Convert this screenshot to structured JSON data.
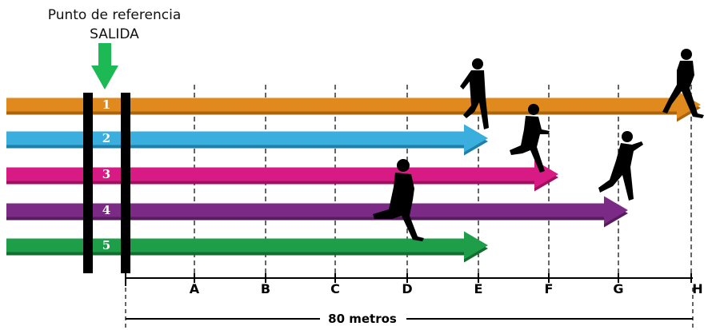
{
  "reference": {
    "line1": "Punto de referencia",
    "line2": "SALIDA",
    "arrow_color": "#1db954"
  },
  "lanes": [
    {
      "number": "1",
      "color": "#e08a1e",
      "shadow": "#a8640f",
      "ends_at": "H"
    },
    {
      "number": "2",
      "color": "#3aaedc",
      "shadow": "#1f7fa8",
      "ends_at": "E"
    },
    {
      "number": "3",
      "color": "#d81b84",
      "shadow": "#a01060",
      "ends_at": "F"
    },
    {
      "number": "4",
      "color": "#7b2a86",
      "shadow": "#561c5e",
      "ends_at": "G"
    },
    {
      "number": "5",
      "color": "#1f9e4a",
      "shadow": "#146c31",
      "ends_at": "E"
    }
  ],
  "markers": [
    "A",
    "B",
    "C",
    "D",
    "E",
    "F",
    "G",
    "H"
  ],
  "distance": {
    "label": "80 metros"
  }
}
